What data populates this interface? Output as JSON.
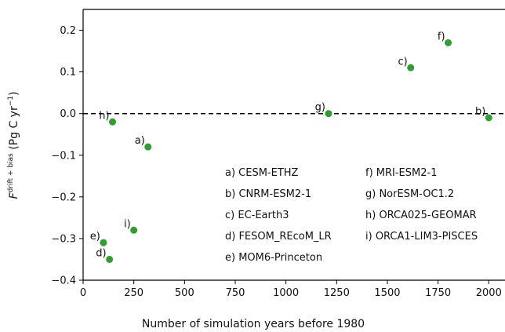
{
  "chart_data": {
    "type": "scatter",
    "xlabel": "Number of simulation years before 1980",
    "ylabel": {
      "base": "F",
      "sup": "drift + bias",
      "units_pre": " (Pg C yr",
      "units_sup": "−1",
      "units_post": ")"
    },
    "xlim": [
      0,
      2080
    ],
    "ylim": [
      -0.4,
      0.25
    ],
    "xticks": [
      0,
      250,
      500,
      750,
      1000,
      1250,
      1500,
      1750,
      2000
    ],
    "yticks": [
      -0.4,
      -0.3,
      -0.2,
      -0.1,
      0.0,
      0.1,
      0.2
    ],
    "xtick_labels": [
      "0",
      "250",
      "500",
      "750",
      "1000",
      "1250",
      "1500",
      "1750",
      "2000"
    ],
    "ytick_labels": [
      "−0.4",
      "−0.3",
      "−0.2",
      "−0.1",
      "0.0",
      "0.1",
      "0.2"
    ],
    "reference_line": {
      "y": 0.0,
      "style": "dashed",
      "color": "#000000"
    },
    "marker_color": "#2ca02c",
    "points": [
      {
        "label": "a)",
        "x": 320,
        "y": -0.08
      },
      {
        "label": "b)",
        "x": 2000,
        "y": -0.01
      },
      {
        "label": "c)",
        "x": 1615,
        "y": 0.11
      },
      {
        "label": "d)",
        "x": 130,
        "y": -0.35
      },
      {
        "label": "e)",
        "x": 100,
        "y": -0.31
      },
      {
        "label": "f)",
        "x": 1800,
        "y": 0.17
      },
      {
        "label": "g)",
        "x": 1210,
        "y": 0.0
      },
      {
        "label": "h)",
        "x": 145,
        "y": -0.02
      },
      {
        "label": "i)",
        "x": 250,
        "y": -0.28
      }
    ],
    "legend_col1": [
      "a) CESM-ETHZ",
      "b) CNRM-ESM2-1",
      "c) EC-Earth3",
      "d) FESOM_REcoM_LR",
      "e) MOM6-Princeton"
    ],
    "legend_col2": [
      "f) MRI-ESM2-1",
      "g) NorESM-OC1.2",
      "h) ORCA025-GEOMAR",
      "i) ORCA1-LIM3-PISCES"
    ]
  }
}
